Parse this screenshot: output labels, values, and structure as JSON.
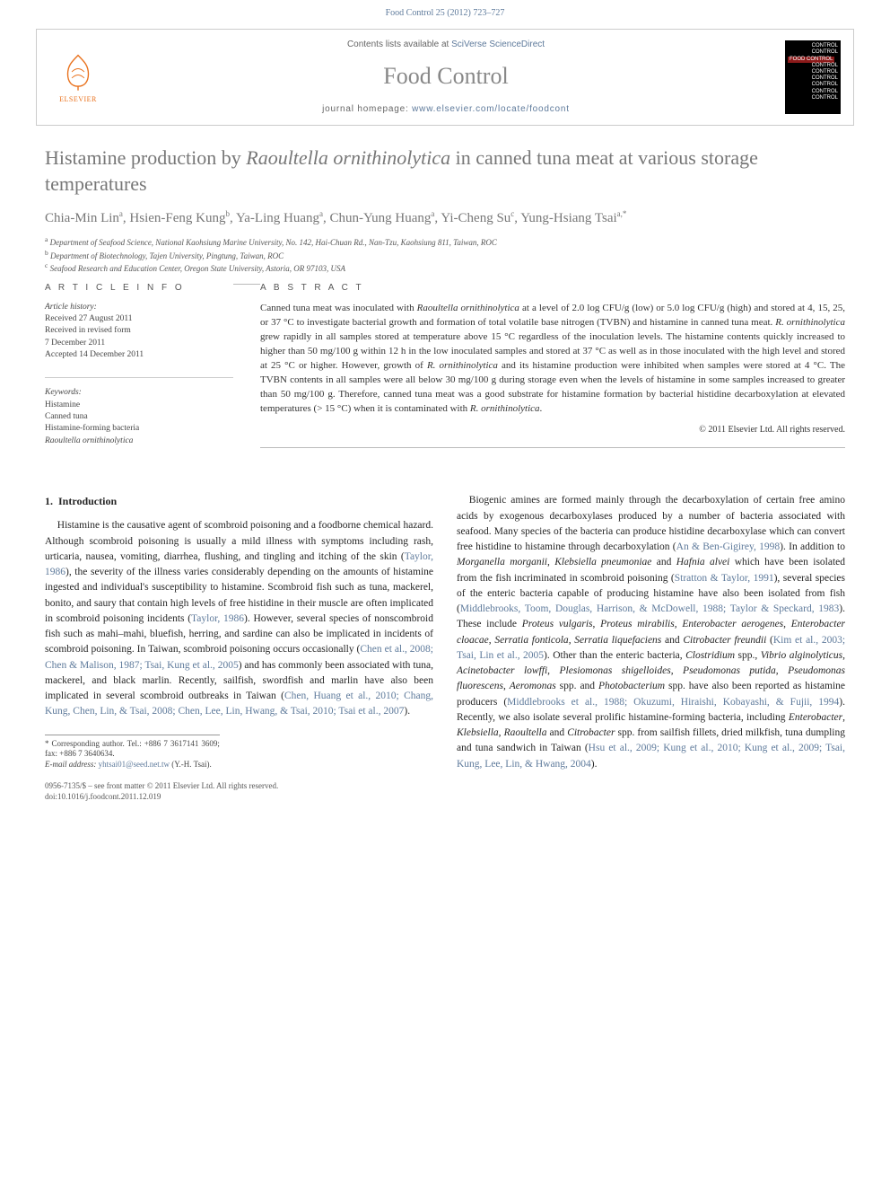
{
  "header": {
    "running": "Food Control 25 (2012) 723–727"
  },
  "banner": {
    "contents_prefix": "Contents lists available at ",
    "contents_link": "SciVerse ScienceDirect",
    "journal": "Food Control",
    "homepage_prefix": "journal homepage: ",
    "homepage_url": "www.elsevier.com/locate/foodcont",
    "publisher": "ELSEVIER",
    "cover_lines": [
      "CONTROL",
      "CONTROL",
      "FOOD CONTROL",
      "CONTROL",
      "CONTROL",
      "CONTROL",
      "CONTROL",
      "CONTROL",
      "CONTROL"
    ]
  },
  "article": {
    "title_plain": "Histamine production by ",
    "title_em": "Raoultella ornithinolytica",
    "title_tail": " in canned tuna meat at various storage temperatures",
    "authors_html": "Chia-Min Lin<sup>a</sup>, Hsien-Feng Kung<sup>b</sup>, Ya-Ling Huang<sup>a</sup>, Chun-Yung Huang<sup>a</sup>, Yi-Cheng Su<sup>c</sup>, Yung-Hsiang Tsai<sup>a,*</sup>",
    "affiliations": [
      "a Department of Seafood Science, National Kaohsiung Marine University, No. 142, Hai-Chuan Rd., Nan-Tzu, Kaohsiung 811, Taiwan, ROC",
      "b Department of Biotechnology, Tajen University, Pingtung, Taiwan, ROC",
      "c Seafood Research and Education Center, Oregon State University, Astoria, OR 97103, USA"
    ]
  },
  "info": {
    "head": "A R T I C L E   I N F O",
    "history_label": "Article history:",
    "history": [
      "Received 27 August 2011",
      "Received in revised form",
      "7 December 2011",
      "Accepted 14 December 2011"
    ],
    "kw_label": "Keywords:",
    "keywords": [
      "Histamine",
      "Canned tuna",
      "Histamine-forming bacteria",
      "Raoultella ornithinolytica"
    ]
  },
  "abstract": {
    "head": "A B S T R A C T",
    "text": "Canned tuna meat was inoculated with Raoultella ornithinolytica at a level of 2.0 log CFU/g (low) or 5.0 log CFU/g (high) and stored at 4, 15, 25, or 37 °C to investigate bacterial growth and formation of total volatile base nitrogen (TVBN) and histamine in canned tuna meat. R. ornithinolytica grew rapidly in all samples stored at temperature above 15 °C regardless of the inoculation levels. The histamine contents quickly increased to higher than 50 mg/100 g within 12 h in the low inoculated samples and stored at 37 °C as well as in those inoculated with the high level and stored at 25 °C or higher. However, growth of R. ornithinolytica and its histamine production were inhibited when samples were stored at 4 °C. The TVBN contents in all samples were all below 30 mg/100 g during storage even when the levels of histamine in some samples increased to greater than 50 mg/100 g. Therefore, canned tuna meat was a good substrate for histamine formation by bacterial histidine decarboxylation at elevated temperatures (> 15 °C) when it is contaminated with R. ornithinolytica.",
    "copyright": "© 2011 Elsevier Ltd. All rights reserved."
  },
  "body": {
    "section_no": "1.",
    "section_title": "Introduction",
    "col1": "Histamine is the causative agent of scombroid poisoning and a foodborne chemical hazard. Although scombroid poisoning is usually a mild illness with symptoms including rash, urticaria, nausea, vomiting, diarrhea, flushing, and tingling and itching of the skin (Taylor, 1986), the severity of the illness varies considerably depending on the amounts of histamine ingested and individual's susceptibility to histamine. Scombroid fish such as tuna, mackerel, bonito, and saury that contain high levels of free histidine in their muscle are often implicated in scombroid poisoning incidents (Taylor, 1986). However, several species of nonscombroid fish such as mahi–mahi, bluefish, herring, and sardine can also be implicated in incidents of scombroid poisoning. In Taiwan, scombroid poisoning occurs occasionally (Chen et al., 2008; Chen & Malison, 1987; Tsai, Kung et al., 2005) and has commonly been associated with tuna, mackerel, and black marlin. Recently, sailfish, swordfish and marlin have also been implicated in several scombroid outbreaks in Taiwan (Chen, Huang et al., 2010; Chang, Kung, Chen, Lin, & Tsai, 2008; Chen, Lee, Lin, Hwang, & Tsai, 2010; Tsai et al., 2007).",
    "col2": "Biogenic amines are formed mainly through the decarboxylation of certain free amino acids by exogenous decarboxylases produced by a number of bacteria associated with seafood. Many species of the bacteria can produce histidine decarboxylase which can convert free histidine to histamine through decarboxylation (An & Ben-Gigirey, 1998). In addition to Morganella morganii, Klebsiella pneumoniae and Hafnia alvei which have been isolated from the fish incriminated in scombroid poisoning (Stratton & Taylor, 1991), several species of the enteric bacteria capable of producing histamine have also been isolated from fish (Middlebrooks, Toom, Douglas, Harrison, & McDowell, 1988; Taylor & Speckard, 1983). These include Proteus vulgaris, Proteus mirabilis, Enterobacter aerogenes, Enterobacter cloacae, Serratia fonticola, Serratia liquefaciens and Citrobacter freundii (Kim et al., 2003; Tsai, Lin et al., 2005). Other than the enteric bacteria, Clostridium spp., Vibrio alginolyticus, Acinetobacter lowffi, Plesiomonas shigelloides, Pseudomonas putida, Pseudomonas fluorescens, Aeromonas spp. and Photobacterium spp. have also been reported as histamine producers (Middlebrooks et al., 1988; Okuzumi, Hiraishi, Kobayashi, & Fujii, 1994). Recently, we also isolate several prolific histamine-forming bacteria, including Enterobacter, Klebsiella, Raoultella and Citrobacter spp. from sailfish fillets, dried milkfish, tuna dumpling and tuna sandwich in Taiwan (Hsu et al., 2009; Kung et al., 2010; Kung et al., 2009; Tsai, Kung, Lee, Lin, & Hwang, 2004)."
  },
  "footnote": {
    "corr_label": "* Corresponding author. Tel.: +886 7 3617141 3609; fax: +886 7 3640634.",
    "email_label": "E-mail address:",
    "email": "yhtsai01@seed.net.tw",
    "email_who": "(Y.-H. Tsai)."
  },
  "footer": {
    "l1": "0956-7135/$ – see front matter © 2011 Elsevier Ltd. All rights reserved.",
    "l2": "doi:10.1016/j.foodcont.2011.12.019"
  },
  "colors": {
    "link": "#5e7a9b",
    "muted": "#777",
    "elsevier": "#e9711c"
  }
}
